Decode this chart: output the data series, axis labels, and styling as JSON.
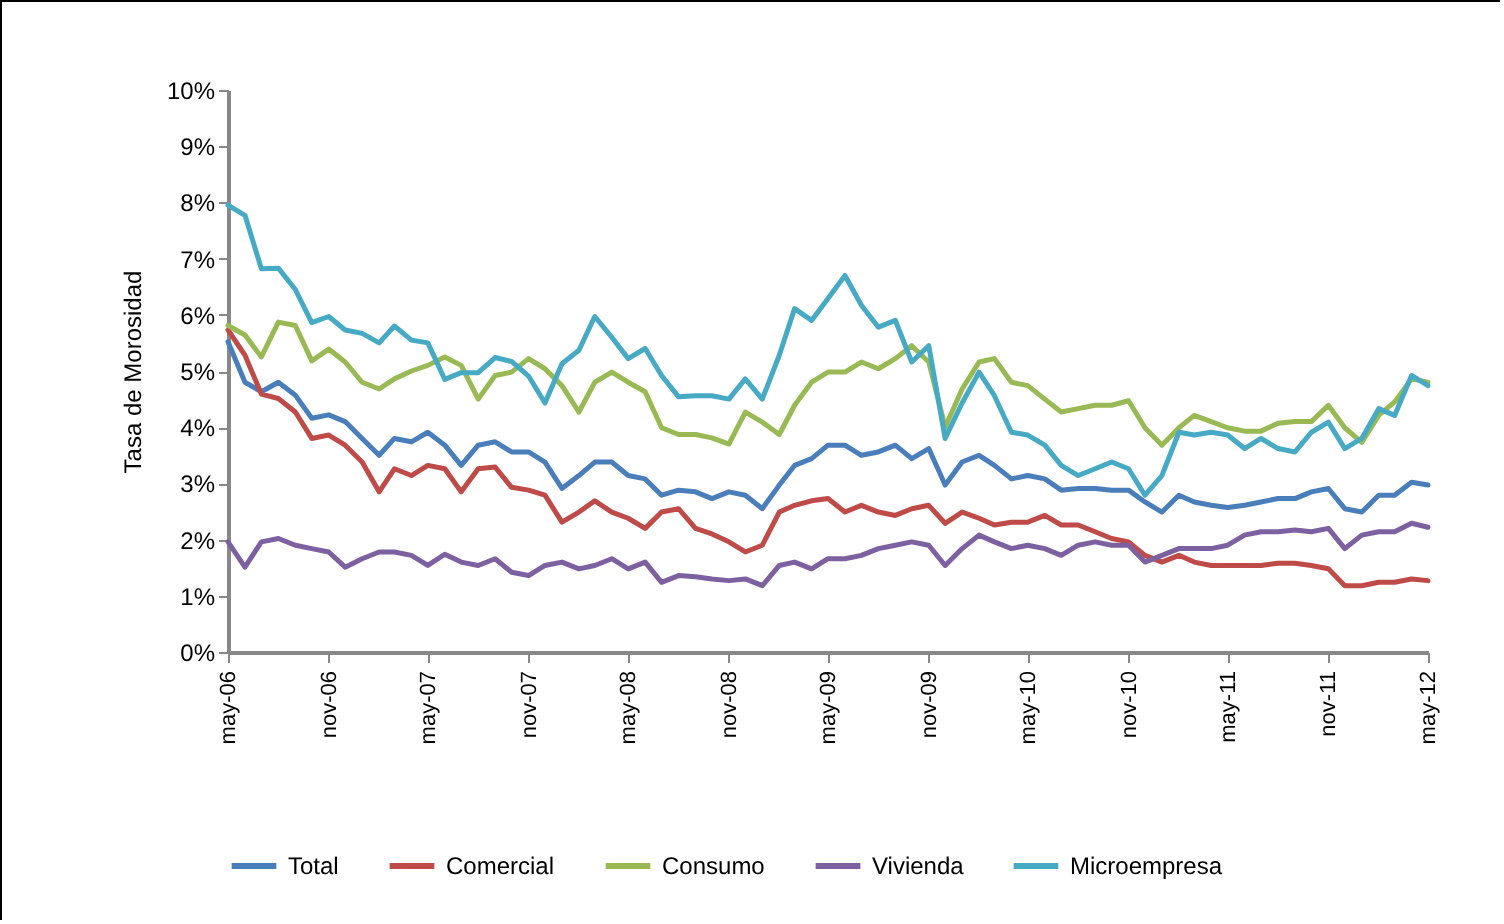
{
  "chart_data": {
    "type": "line",
    "ylabel": "Tasa de Morosidad",
    "x": [
      "2006-05",
      "2006-06",
      "2006-07",
      "2006-08",
      "2006-09",
      "2006-10",
      "2006-11",
      "2006-12",
      "2007-01",
      "2007-02",
      "2007-03",
      "2007-04",
      "2007-05",
      "2007-06",
      "2007-07",
      "2007-08",
      "2007-09",
      "2007-10",
      "2007-11",
      "2007-12",
      "2008-01",
      "2008-02",
      "2008-03",
      "2008-04",
      "2008-05",
      "2008-06",
      "2008-07",
      "2008-08",
      "2008-09",
      "2008-10",
      "2008-11",
      "2008-12",
      "2009-01",
      "2009-02",
      "2009-03",
      "2009-04",
      "2009-05",
      "2009-06",
      "2009-07",
      "2009-08",
      "2009-09",
      "2009-10",
      "2009-11",
      "2009-12",
      "2010-01",
      "2010-02",
      "2010-03",
      "2010-04",
      "2010-05",
      "2010-06",
      "2010-07",
      "2010-08",
      "2010-09",
      "2010-10",
      "2010-11",
      "2010-12",
      "2011-01",
      "2011-02",
      "2011-03",
      "2011-04",
      "2011-05",
      "2011-06",
      "2011-07",
      "2011-08",
      "2011-09",
      "2011-10",
      "2011-11",
      "2011-12",
      "2012-01",
      "2012-02",
      "2012-03",
      "2012-04",
      "2012-05"
    ],
    "xlim": [
      "2006-05",
      "2012-05"
    ],
    "xticks": [
      {
        "value": "2006-05",
        "label": "may-06"
      },
      {
        "value": "2006-11",
        "label": "nov-06"
      },
      {
        "value": "2007-05",
        "label": "may-07"
      },
      {
        "value": "2007-11",
        "label": "nov-07"
      },
      {
        "value": "2008-05",
        "label": "may-08"
      },
      {
        "value": "2008-11",
        "label": "nov-08"
      },
      {
        "value": "2009-05",
        "label": "may-09"
      },
      {
        "value": "2009-11",
        "label": "nov-09"
      },
      {
        "value": "2010-05",
        "label": "may-10"
      },
      {
        "value": "2010-11",
        "label": "nov-10"
      },
      {
        "value": "2011-05",
        "label": "may-11"
      },
      {
        "value": "2011-11",
        "label": "nov-11"
      },
      {
        "value": "2012-05",
        "label": "may-12"
      }
    ],
    "ylim": [
      0,
      10
    ],
    "yticks": [
      {
        "value": 0,
        "label": "0%"
      },
      {
        "value": 1,
        "label": "1%"
      },
      {
        "value": 2,
        "label": "2%"
      },
      {
        "value": 3,
        "label": "3%"
      },
      {
        "value": 4,
        "label": "4%"
      },
      {
        "value": 5,
        "label": "5%"
      },
      {
        "value": 6,
        "label": "6%"
      },
      {
        "value": 7,
        "label": "7%"
      },
      {
        "value": 8,
        "label": "8%"
      },
      {
        "value": 9,
        "label": "9%"
      },
      {
        "value": 10,
        "label": "10%"
      }
    ],
    "legend": "bottom",
    "marker": "none",
    "line_style": "solid",
    "series": [
      {
        "name": "Total",
        "color": "#4a7ebb",
        "values": [
          5.52,
          4.8,
          4.63,
          4.8,
          4.57,
          4.16,
          4.22,
          4.1,
          3.8,
          3.5,
          3.8,
          3.74,
          3.91,
          3.68,
          3.32,
          3.68,
          3.74,
          3.56,
          3.56,
          3.38,
          2.91,
          3.14,
          3.38,
          3.38,
          3.14,
          3.08,
          2.79,
          2.88,
          2.85,
          2.73,
          2.85,
          2.79,
          2.55,
          2.97,
          3.32,
          3.44,
          3.68,
          3.68,
          3.5,
          3.56,
          3.68,
          3.44,
          3.62,
          2.97,
          3.38,
          3.5,
          3.32,
          3.08,
          3.14,
          3.08,
          2.88,
          2.91,
          2.91,
          2.88,
          2.88,
          2.67,
          2.49,
          2.79,
          2.67,
          2.61,
          2.57,
          2.61,
          2.67,
          2.73,
          2.73,
          2.85,
          2.91,
          2.55,
          2.49,
          2.79,
          2.79,
          3.02,
          2.97
        ]
      },
      {
        "name": "Comercial",
        "color": "#be4b48",
        "values": [
          5.73,
          5.28,
          4.59,
          4.51,
          4.27,
          3.8,
          3.86,
          3.68,
          3.38,
          2.85,
          3.26,
          3.14,
          3.32,
          3.26,
          2.85,
          3.26,
          3.29,
          2.93,
          2.88,
          2.79,
          2.31,
          2.49,
          2.69,
          2.49,
          2.38,
          2.2,
          2.49,
          2.55,
          2.2,
          2.1,
          1.96,
          1.78,
          1.9,
          2.49,
          2.61,
          2.69,
          2.73,
          2.49,
          2.61,
          2.49,
          2.43,
          2.55,
          2.61,
          2.29,
          2.49,
          2.38,
          2.26,
          2.31,
          2.31,
          2.43,
          2.26,
          2.26,
          2.14,
          2.02,
          1.96,
          1.72,
          1.6,
          1.72,
          1.6,
          1.54,
          1.54,
          1.54,
          1.54,
          1.58,
          1.58,
          1.54,
          1.48,
          1.18,
          1.18,
          1.24,
          1.24,
          1.3,
          1.27
        ]
      },
      {
        "name": "Consumo",
        "color": "#98b954",
        "values": [
          5.81,
          5.64,
          5.25,
          5.87,
          5.81,
          5.18,
          5.39,
          5.16,
          4.8,
          4.68,
          4.86,
          5.0,
          5.1,
          5.25,
          5.1,
          4.5,
          4.92,
          4.98,
          5.22,
          5.04,
          4.74,
          4.27,
          4.8,
          4.98,
          4.8,
          4.63,
          3.99,
          3.87,
          3.87,
          3.81,
          3.7,
          4.27,
          4.09,
          3.87,
          4.39,
          4.8,
          4.98,
          4.98,
          5.16,
          5.04,
          5.22,
          5.45,
          5.16,
          4.0,
          4.68,
          5.16,
          5.22,
          4.8,
          4.74,
          4.5,
          4.27,
          4.33,
          4.39,
          4.39,
          4.47,
          3.99,
          3.68,
          3.99,
          4.21,
          4.1,
          3.99,
          3.93,
          3.93,
          4.07,
          4.1,
          4.1,
          4.39,
          3.99,
          3.73,
          4.21,
          4.45,
          4.86,
          4.8
        ]
      },
      {
        "name": "Vivienda",
        "color": "#7d60a0",
        "values": [
          1.96,
          1.51,
          1.96,
          2.02,
          1.9,
          1.84,
          1.78,
          1.51,
          1.66,
          1.78,
          1.78,
          1.72,
          1.54,
          1.74,
          1.6,
          1.54,
          1.66,
          1.42,
          1.36,
          1.54,
          1.6,
          1.48,
          1.54,
          1.66,
          1.48,
          1.6,
          1.24,
          1.36,
          1.34,
          1.3,
          1.27,
          1.3,
          1.18,
          1.54,
          1.6,
          1.48,
          1.66,
          1.66,
          1.72,
          1.84,
          1.9,
          1.96,
          1.9,
          1.54,
          1.84,
          2.08,
          1.96,
          1.84,
          1.9,
          1.84,
          1.72,
          1.9,
          1.96,
          1.9,
          1.9,
          1.6,
          1.72,
          1.84,
          1.84,
          1.84,
          1.9,
          2.08,
          2.14,
          2.14,
          2.17,
          2.14,
          2.2,
          1.84,
          2.08,
          2.14,
          2.14,
          2.29,
          2.22
        ]
      },
      {
        "name": "Microempresa",
        "color": "#46aac5",
        "values": [
          7.95,
          7.77,
          6.82,
          6.83,
          6.45,
          5.86,
          5.97,
          5.73,
          5.67,
          5.5,
          5.8,
          5.55,
          5.5,
          4.85,
          4.97,
          4.97,
          5.24,
          5.17,
          4.91,
          4.43,
          5.13,
          5.37,
          5.97,
          5.6,
          5.22,
          5.4,
          4.92,
          4.54,
          4.56,
          4.56,
          4.5,
          4.86,
          4.5,
          5.28,
          6.11,
          5.9,
          6.29,
          6.7,
          6.17,
          5.78,
          5.9,
          5.16,
          5.45,
          3.8,
          4.43,
          4.98,
          4.56,
          3.91,
          3.86,
          3.68,
          3.32,
          3.14,
          3.26,
          3.38,
          3.26,
          2.79,
          3.14,
          3.91,
          3.86,
          3.91,
          3.86,
          3.62,
          3.8,
          3.62,
          3.56,
          3.91,
          4.09,
          3.62,
          3.8,
          4.33,
          4.21,
          4.92,
          4.74
        ]
      }
    ]
  }
}
